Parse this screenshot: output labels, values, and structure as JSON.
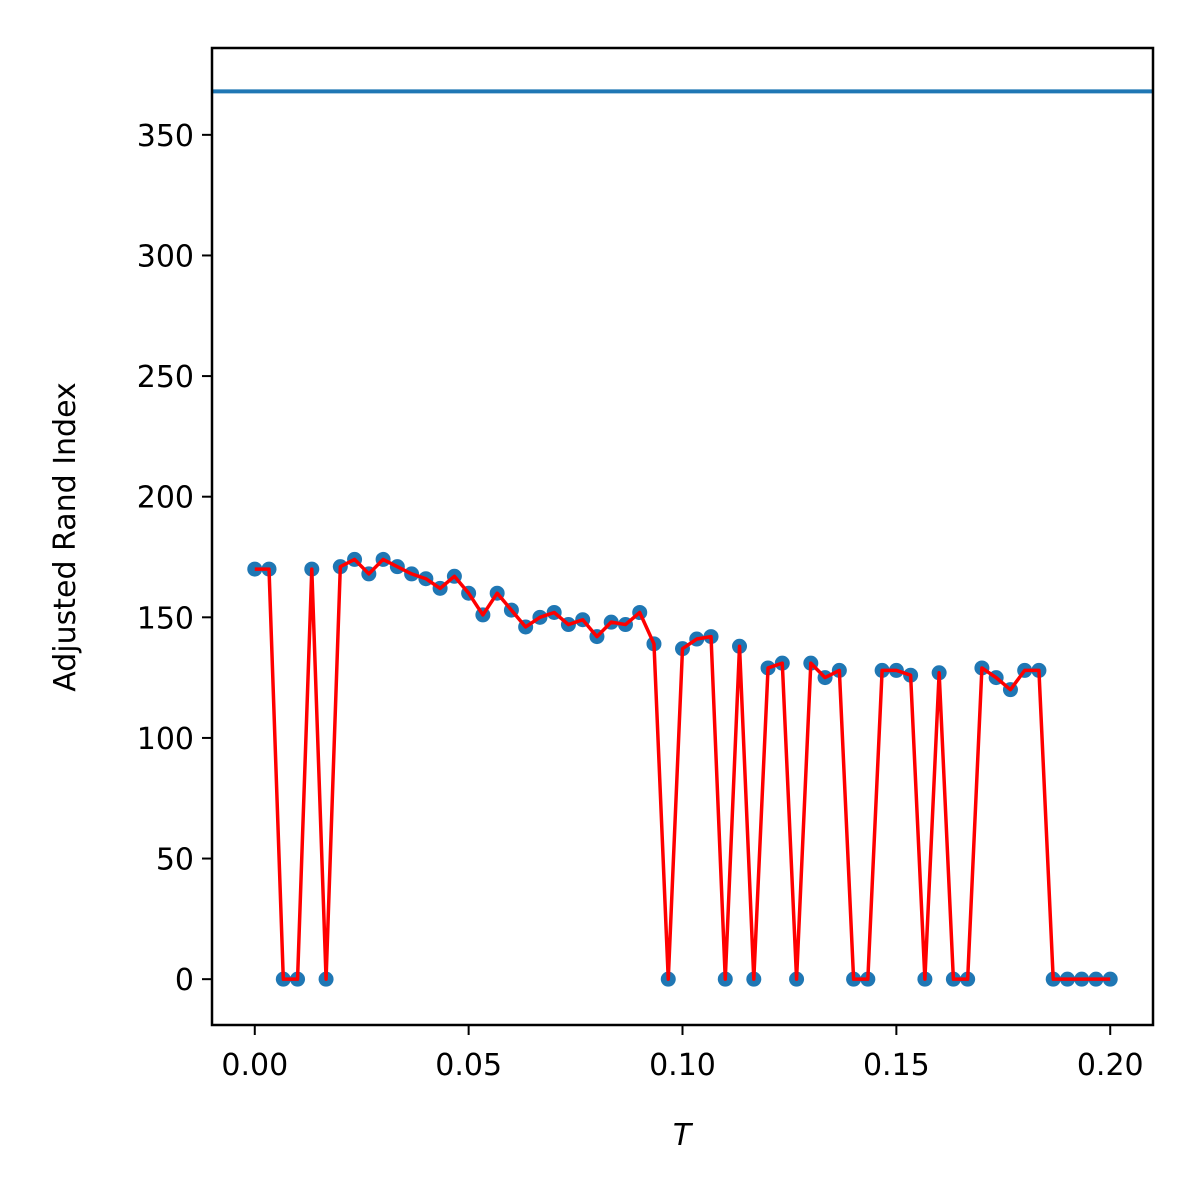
{
  "chart_data": {
    "type": "line",
    "title": "",
    "xlabel": "T",
    "ylabel": "Adjusted Rand Index",
    "xlim": [
      -0.01,
      0.21
    ],
    "ylim": [
      -19,
      386
    ],
    "x_ticks": [
      0.0,
      0.05,
      0.1,
      0.15,
      0.2
    ],
    "x_tick_labels": [
      "0.00",
      "0.05",
      "0.10",
      "0.15",
      "0.20"
    ],
    "y_ticks": [
      0,
      50,
      100,
      150,
      200,
      250,
      300,
      350
    ],
    "y_tick_labels": [
      "0",
      "50",
      "100",
      "150",
      "200",
      "250",
      "300",
      "350"
    ],
    "grid": false,
    "reference_line": {
      "y": 368,
      "color": "#1f77b4"
    },
    "series": [
      {
        "marker_color": "#1f77b4",
        "line_color": "#ff0000",
        "x": [
          0.0,
          0.00333,
          0.00667,
          0.01,
          0.01333,
          0.01667,
          0.02,
          0.02333,
          0.02667,
          0.03,
          0.03333,
          0.03667,
          0.04,
          0.04333,
          0.04667,
          0.05,
          0.05333,
          0.05667,
          0.06,
          0.06333,
          0.06667,
          0.07,
          0.07333,
          0.07667,
          0.08,
          0.08333,
          0.08667,
          0.09,
          0.09333,
          0.09667,
          0.1,
          0.10333,
          0.10667,
          0.11,
          0.11333,
          0.11667,
          0.12,
          0.12333,
          0.12667,
          0.13,
          0.13333,
          0.13667,
          0.14,
          0.14333,
          0.14667,
          0.15,
          0.15333,
          0.15667,
          0.16,
          0.16333,
          0.16667,
          0.17,
          0.17333,
          0.17667,
          0.18,
          0.18333,
          0.18667,
          0.19,
          0.19333,
          0.19667,
          0.2
        ],
        "y": [
          170,
          170,
          0,
          0,
          170,
          0,
          171,
          174,
          168,
          174,
          171,
          168,
          166,
          162,
          167,
          160,
          151,
          160,
          153,
          146,
          150,
          152,
          147,
          149,
          142,
          148,
          147,
          152,
          139,
          0,
          137,
          141,
          142,
          0,
          138,
          0,
          129,
          131,
          0,
          131,
          125,
          128,
          0,
          0,
          128,
          128,
          126,
          0,
          127,
          0,
          0,
          129,
          125,
          120,
          128,
          128,
          0,
          0,
          0,
          0,
          0
        ]
      }
    ]
  }
}
